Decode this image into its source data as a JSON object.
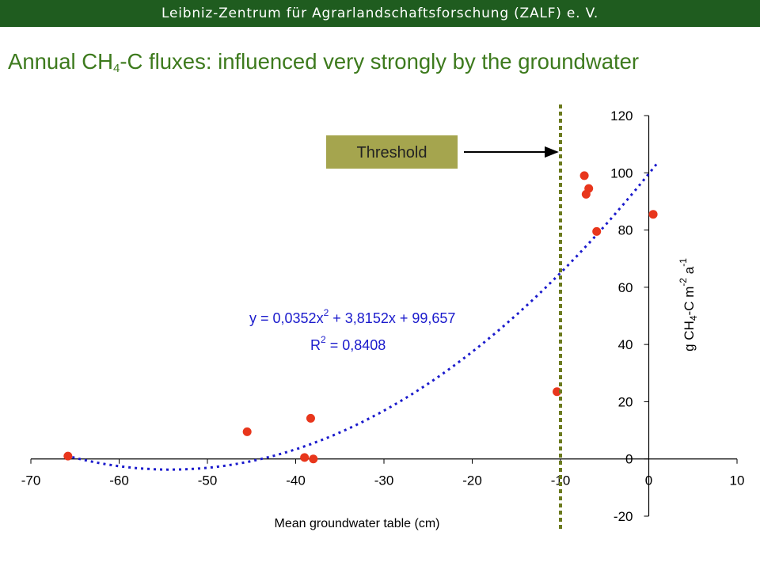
{
  "header": {
    "text": "Leibniz-Zentrum für Agrarlandschaftsforschung (ZALF) e. V."
  },
  "title": {
    "prefix": "Annual CH",
    "sub": "4",
    "suffix": "-C fluxes: influenced very strongly by the groundwater"
  },
  "colors": {
    "header_bg": "#1f5c1f",
    "title": "#3d7a1d",
    "points": "#e8361c",
    "trend": "#1a1acc",
    "threshold_line": "#6b7a1e",
    "threshold_box": "#a5a54e"
  },
  "chart_data": {
    "type": "scatter",
    "xlabel": "Mean groundwater table (cm)",
    "ylabel": {
      "prefix": "g CH",
      "sub": "4",
      "mid": "-C m",
      "sup1": "-2",
      "mid2": " a",
      "sup2": "-1"
    },
    "xlim": [
      -70,
      10
    ],
    "ylim": [
      -20,
      120
    ],
    "x_ticks": [
      "-70",
      "-60",
      "-50",
      "-40",
      "-30",
      "-20",
      "-10",
      "0",
      "10"
    ],
    "y_ticks": [
      "120",
      "100",
      "80",
      "60",
      "40",
      "20",
      "0",
      "-20"
    ],
    "grid": false,
    "points": [
      {
        "x": -65.8,
        "y": 1
      },
      {
        "x": -45.5,
        "y": 9.5
      },
      {
        "x": -38.3,
        "y": 14.2
      },
      {
        "x": -39,
        "y": 0.5
      },
      {
        "x": -38,
        "y": 0
      },
      {
        "x": -10.4,
        "y": 23.5
      },
      {
        "x": -7.3,
        "y": 99
      },
      {
        "x": -6.8,
        "y": 94.5
      },
      {
        "x": -7.1,
        "y": 92.5
      },
      {
        "x": -5.9,
        "y": 79.5
      },
      {
        "x": 0.5,
        "y": 85.5
      }
    ],
    "trendline": {
      "type": "polynomial",
      "a": 0.0352,
      "b": 3.8152,
      "c": 99.657,
      "x_range": [
        -66,
        1
      ],
      "equation": "y = 0,0352x",
      "equation_sup": "2",
      "equation_rest": " + 3,8152x + 99,657",
      "r2_prefix": "R",
      "r2_sup": "2",
      "r2_rest": " = 0,8408"
    },
    "threshold": {
      "x": -10,
      "label": "Threshold"
    }
  }
}
